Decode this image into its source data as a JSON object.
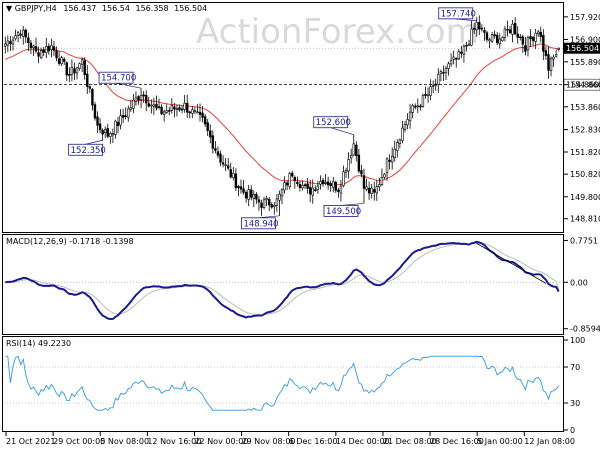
{
  "chart_data": [
    {
      "type": "candlestick",
      "title": "GBPJPY,H4",
      "ohlc": {
        "open": 156.437,
        "high": 156.54,
        "low": 156.358,
        "close": 156.504
      },
      "ylim": [
        148.3,
        158.5
      ],
      "price_ticks": [
        "157.920",
        "156.900",
        "155.890",
        "154.860",
        "153.860",
        "152.830",
        "151.820",
        "150.820",
        "149.800",
        "148.810"
      ],
      "current_price": "156.504",
      "level_line": {
        "value": 154.86,
        "label": "154.860"
      },
      "moving_average_color": "#e8403f",
      "annotations": [
        {
          "label": "154.700",
          "value": 154.7,
          "i": 53
        },
        {
          "label": "152.350",
          "value": 152.35,
          "i": 38
        },
        {
          "label": "152.600",
          "value": 152.6,
          "i": 136
        },
        {
          "label": "148.940",
          "value": 148.94,
          "i": 107
        },
        {
          "label": "149.500",
          "value": 149.5,
          "i": 140
        },
        {
          "label": "157.740",
          "value": 157.74,
          "i": 184
        }
      ]
    },
    {
      "type": "line",
      "title": "MACD(12,26,9) -0.1718 -0.1398",
      "ticks": [
        "0.7751",
        "0.00",
        "-0.8594"
      ],
      "ylim": [
        -0.92,
        0.82
      ],
      "series": [
        {
          "name": "MACD",
          "color": "#1a1a8c"
        },
        {
          "name": "Signal",
          "color": "#bbbbbb"
        }
      ]
    },
    {
      "type": "line",
      "title": "RSI(14) 49.2230",
      "ticks": [
        "100",
        "70",
        "30",
        "0"
      ],
      "ylim": [
        0,
        100
      ],
      "series": [
        {
          "name": "RSI",
          "color": "#3399dd"
        }
      ]
    }
  ],
  "x_axis_labels": [
    "21 Oct 2021",
    "29 Oct 00:00",
    "5 Nov 08:00",
    "12 Nov 16:00",
    "22 Nov 00:00",
    "29 Nov 08:00",
    "6 Dec 16:00",
    "14 Dec 00:00",
    "21 Dec 08:00",
    "28 Dec 16:00",
    "5 Jan 00:00",
    "12 Jan 08:00"
  ],
  "watermark": "ActionForex.com",
  "price_path_anchors": [
    [
      0,
      156.7
    ],
    [
      6,
      157.3
    ],
    [
      12,
      156.3
    ],
    [
      18,
      156.6
    ],
    [
      25,
      155.3
    ],
    [
      30,
      155.9
    ],
    [
      36,
      153.0
    ],
    [
      40,
      152.6
    ],
    [
      46,
      153.4
    ],
    [
      53,
      154.5
    ],
    [
      60,
      153.6
    ],
    [
      70,
      153.9
    ],
    [
      77,
      153.2
    ],
    [
      84,
      151.5
    ],
    [
      92,
      150.1
    ],
    [
      100,
      149.5
    ],
    [
      106,
      149.6
    ],
    [
      112,
      150.9
    ],
    [
      118,
      150.0
    ],
    [
      124,
      150.6
    ],
    [
      130,
      150.2
    ],
    [
      136,
      152.2
    ],
    [
      140,
      150.2
    ],
    [
      144,
      149.9
    ],
    [
      150,
      151.6
    ],
    [
      158,
      153.6
    ],
    [
      165,
      154.4
    ],
    [
      172,
      155.6
    ],
    [
      178,
      156.2
    ],
    [
      184,
      157.6
    ],
    [
      188,
      156.9
    ],
    [
      194,
      157.0
    ],
    [
      198,
      157.5
    ],
    [
      203,
      156.6
    ],
    [
      208,
      157.4
    ],
    [
      212,
      155.6
    ],
    [
      216,
      156.5
    ]
  ]
}
